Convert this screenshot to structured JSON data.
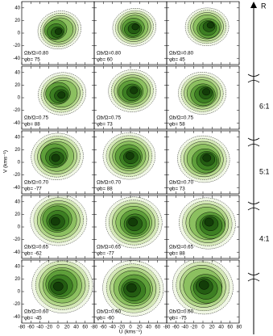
{
  "figure": {
    "ylabel": "V (kms⁻¹)",
    "xlabel": "U (kms⁻¹)",
    "xlim": [
      -80,
      80
    ],
    "ylim": [
      -50,
      50
    ],
    "xticks": [
      -80,
      -60,
      -40,
      -20,
      0,
      20,
      40,
      60,
      80
    ],
    "yticks": [
      -40,
      -20,
      0,
      20,
      40
    ],
    "panels": [
      [
        {
          "ratio": "Ωb/Ω=0.80",
          "angle": "φb= 75"
        },
        {
          "ratio": "Ωb/Ω=0.80",
          "angle": "φb= 60"
        },
        {
          "ratio": "Ωb/Ω=0.80",
          "angle": "φb= 45"
        }
      ],
      [
        {
          "ratio": "Ωb/Ω=0.75",
          "angle": "φb= 88"
        },
        {
          "ratio": "Ωb/Ω=0.75",
          "angle": "φb= 73"
        },
        {
          "ratio": "Ωb/Ω=0.75",
          "angle": "φb= 58"
        }
      ],
      [
        {
          "ratio": "Ωb/Ω=0.70",
          "angle": "φb= -77"
        },
        {
          "ratio": "Ωb/Ω=0.70",
          "angle": "φb= 88"
        },
        {
          "ratio": "Ωb/Ω=0.70",
          "angle": "φb= 73"
        }
      ],
      [
        {
          "ratio": "Ωb/Ω=0.65",
          "angle": "φb= -62"
        },
        {
          "ratio": "Ωb/Ω=0.65",
          "angle": "φb= -77"
        },
        {
          "ratio": "Ωb/Ω=0.65",
          "angle": "φb= 88"
        }
      ],
      [
        {
          "ratio": "Ωb/Ω=0.60",
          "angle": "φb= -45"
        },
        {
          "ratio": "Ωb/Ω=0.60",
          "angle": "φb= -60"
        },
        {
          "ratio": "Ωb/Ω=0.60",
          "angle": "φb= -75"
        }
      ]
    ],
    "radius_label": "R",
    "resonances": [
      "6:1",
      "5:1",
      "4:1"
    ]
  }
}
